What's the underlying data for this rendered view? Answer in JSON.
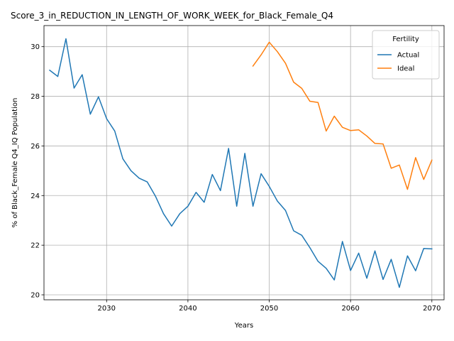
{
  "chart_data": {
    "type": "line",
    "title": "Score_3_in_REDUCTION_IN_LENGTH_OF_WORK_WEEK_for_Black_Female_Q4",
    "xlabel": "Years",
    "ylabel": "% of Black_Female Q4_IQ Population",
    "xlim": [
      2022.3,
      2071.5
    ],
    "ylim": [
      19.8,
      30.85
    ],
    "xticks": [
      2030,
      2040,
      2050,
      2060,
      2070
    ],
    "yticks": [
      20,
      22,
      24,
      26,
      28,
      30
    ],
    "grid": true,
    "legend": {
      "title": "Fertility",
      "placement": "top-right"
    },
    "series": [
      {
        "name": "Actual",
        "color": "#1f77b4",
        "x": [
          2023,
          2024,
          2025,
          2026,
          2027,
          2028,
          2029,
          2030,
          2031,
          2032,
          2033,
          2034,
          2035,
          2036,
          2037,
          2038,
          2039,
          2040,
          2041,
          2042,
          2043,
          2044,
          2045,
          2046,
          2047,
          2048,
          2049,
          2050,
          2051,
          2052,
          2053,
          2054,
          2055,
          2056,
          2057,
          2058,
          2059,
          2060,
          2061,
          2062,
          2063,
          2064,
          2065,
          2066,
          2067,
          2068,
          2069,
          2070
        ],
        "y": [
          29.05,
          28.8,
          30.32,
          28.33,
          28.87,
          27.28,
          27.98,
          27.1,
          26.6,
          25.48,
          25.0,
          24.7,
          24.55,
          23.98,
          23.27,
          22.77,
          23.27,
          23.57,
          24.13,
          23.73,
          24.85,
          24.2,
          25.9,
          23.57,
          25.7,
          23.57,
          24.88,
          24.37,
          23.78,
          23.4,
          22.58,
          22.4,
          21.9,
          21.35,
          21.07,
          20.6,
          22.15,
          20.98,
          21.68,
          20.67,
          21.77,
          20.62,
          21.43,
          20.3,
          21.57,
          20.97,
          21.87,
          21.85
        ]
      },
      {
        "name": "Ideal",
        "color": "#ff7f0e",
        "x": [
          2048,
          2049,
          2050,
          2051,
          2052,
          2053,
          2054,
          2055,
          2056,
          2057,
          2058,
          2059,
          2060,
          2061,
          2062,
          2063,
          2064,
          2065,
          2066,
          2067,
          2068,
          2069,
          2070
        ],
        "y": [
          29.22,
          29.67,
          30.18,
          29.8,
          29.33,
          28.57,
          28.32,
          27.8,
          27.75,
          26.6,
          27.2,
          26.75,
          26.62,
          26.65,
          26.4,
          26.1,
          26.08,
          25.1,
          25.23,
          24.25,
          25.53,
          24.65,
          25.43
        ]
      }
    ]
  }
}
